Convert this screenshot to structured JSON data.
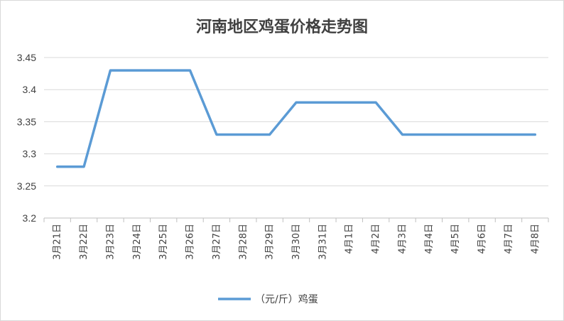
{
  "chart_data": {
    "type": "line",
    "title": "河南地区鸡蛋价格走势图",
    "categories": [
      "3月21日",
      "3月22日",
      "3月23日",
      "3月24日",
      "3月25日",
      "3月26日",
      "3月27日",
      "3月28日",
      "3月29日",
      "3月30日",
      "3月31日",
      "4月1日",
      "4月2日",
      "4月3日",
      "4月4日",
      "4月5日",
      "4月6日",
      "4月7日",
      "4月8日"
    ],
    "series": [
      {
        "name": "（元/斤）鸡蛋",
        "color": "#5b9bd5",
        "values": [
          3.28,
          3.28,
          3.43,
          3.43,
          3.43,
          3.43,
          3.33,
          3.33,
          3.33,
          3.38,
          3.38,
          3.38,
          3.38,
          3.33,
          3.33,
          3.33,
          3.33,
          3.33,
          3.33
        ]
      }
    ],
    "ylim": [
      3.2,
      3.45
    ],
    "yticks": [
      "3.2",
      "3.25",
      "3.3",
      "3.35",
      "3.4",
      "3.45"
    ],
    "grid": true,
    "legend": "bottom"
  }
}
